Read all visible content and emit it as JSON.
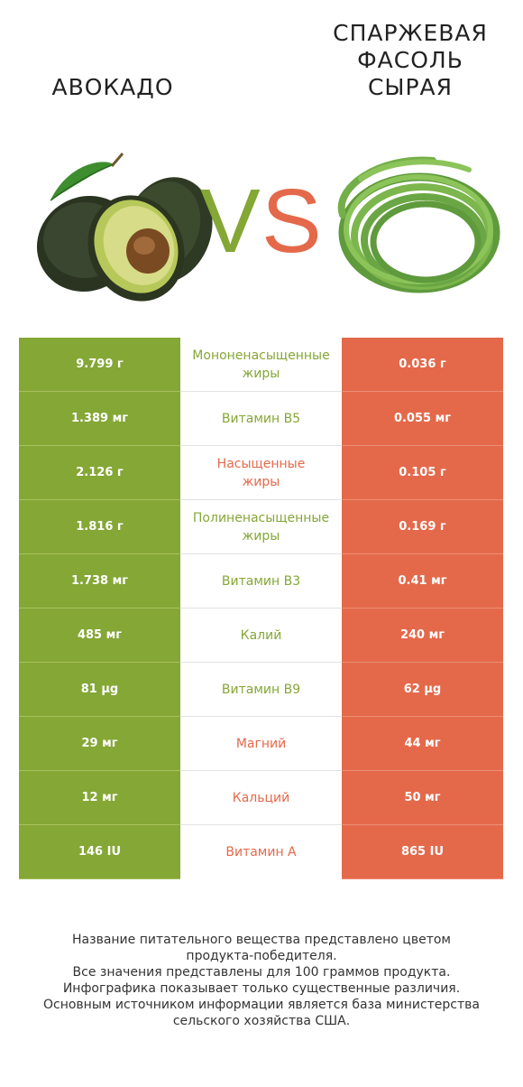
{
  "header": {
    "left_title": "АВОКАДО",
    "right_title_lines": [
      "СПАРЖЕВАЯ",
      "ФАСОЛЬ",
      "СЫРАЯ"
    ],
    "vs_v": "V",
    "vs_s": "S"
  },
  "colors": {
    "left_product": "#85a736",
    "right_product": "#e4694a"
  },
  "rows": [
    {
      "left": "9.799 г",
      "nutrient": "Мононенасыщенные\nжиры",
      "right": "0.036 г",
      "winner": "left"
    },
    {
      "left": "1.389 мг",
      "nutrient": "Витамин B5",
      "right": "0.055 мг",
      "winner": "left"
    },
    {
      "left": "2.126 г",
      "nutrient": "Насыщенные\nжиры",
      "right": "0.105 г",
      "winner": "right"
    },
    {
      "left": "1.816 г",
      "nutrient": "Полиненасыщенные\nжиры",
      "right": "0.169 г",
      "winner": "left"
    },
    {
      "left": "1.738 мг",
      "nutrient": "Витамин B3",
      "right": "0.41 мг",
      "winner": "left"
    },
    {
      "left": "485 мг",
      "nutrient": "Калий",
      "right": "240 мг",
      "winner": "left"
    },
    {
      "left": "81 µg",
      "nutrient": "Витамин B9",
      "right": "62 µg",
      "winner": "left"
    },
    {
      "left": "29 мг",
      "nutrient": "Магний",
      "right": "44 мг",
      "winner": "right"
    },
    {
      "left": "12 мг",
      "nutrient": "Кальций",
      "right": "50 мг",
      "winner": "right"
    },
    {
      "left": "146 IU",
      "nutrient": "Витамин A",
      "right": "865 IU",
      "winner": "right"
    }
  ],
  "footer_lines": [
    "Название питательного вещества представлено цветом",
    "продукта-победителя.",
    "Все значения представлены для 100 граммов продукта.",
    "Инфографика показывает только существенные различия.",
    "Основным источником информации является база министерства",
    "сельского хозяйства США."
  ]
}
